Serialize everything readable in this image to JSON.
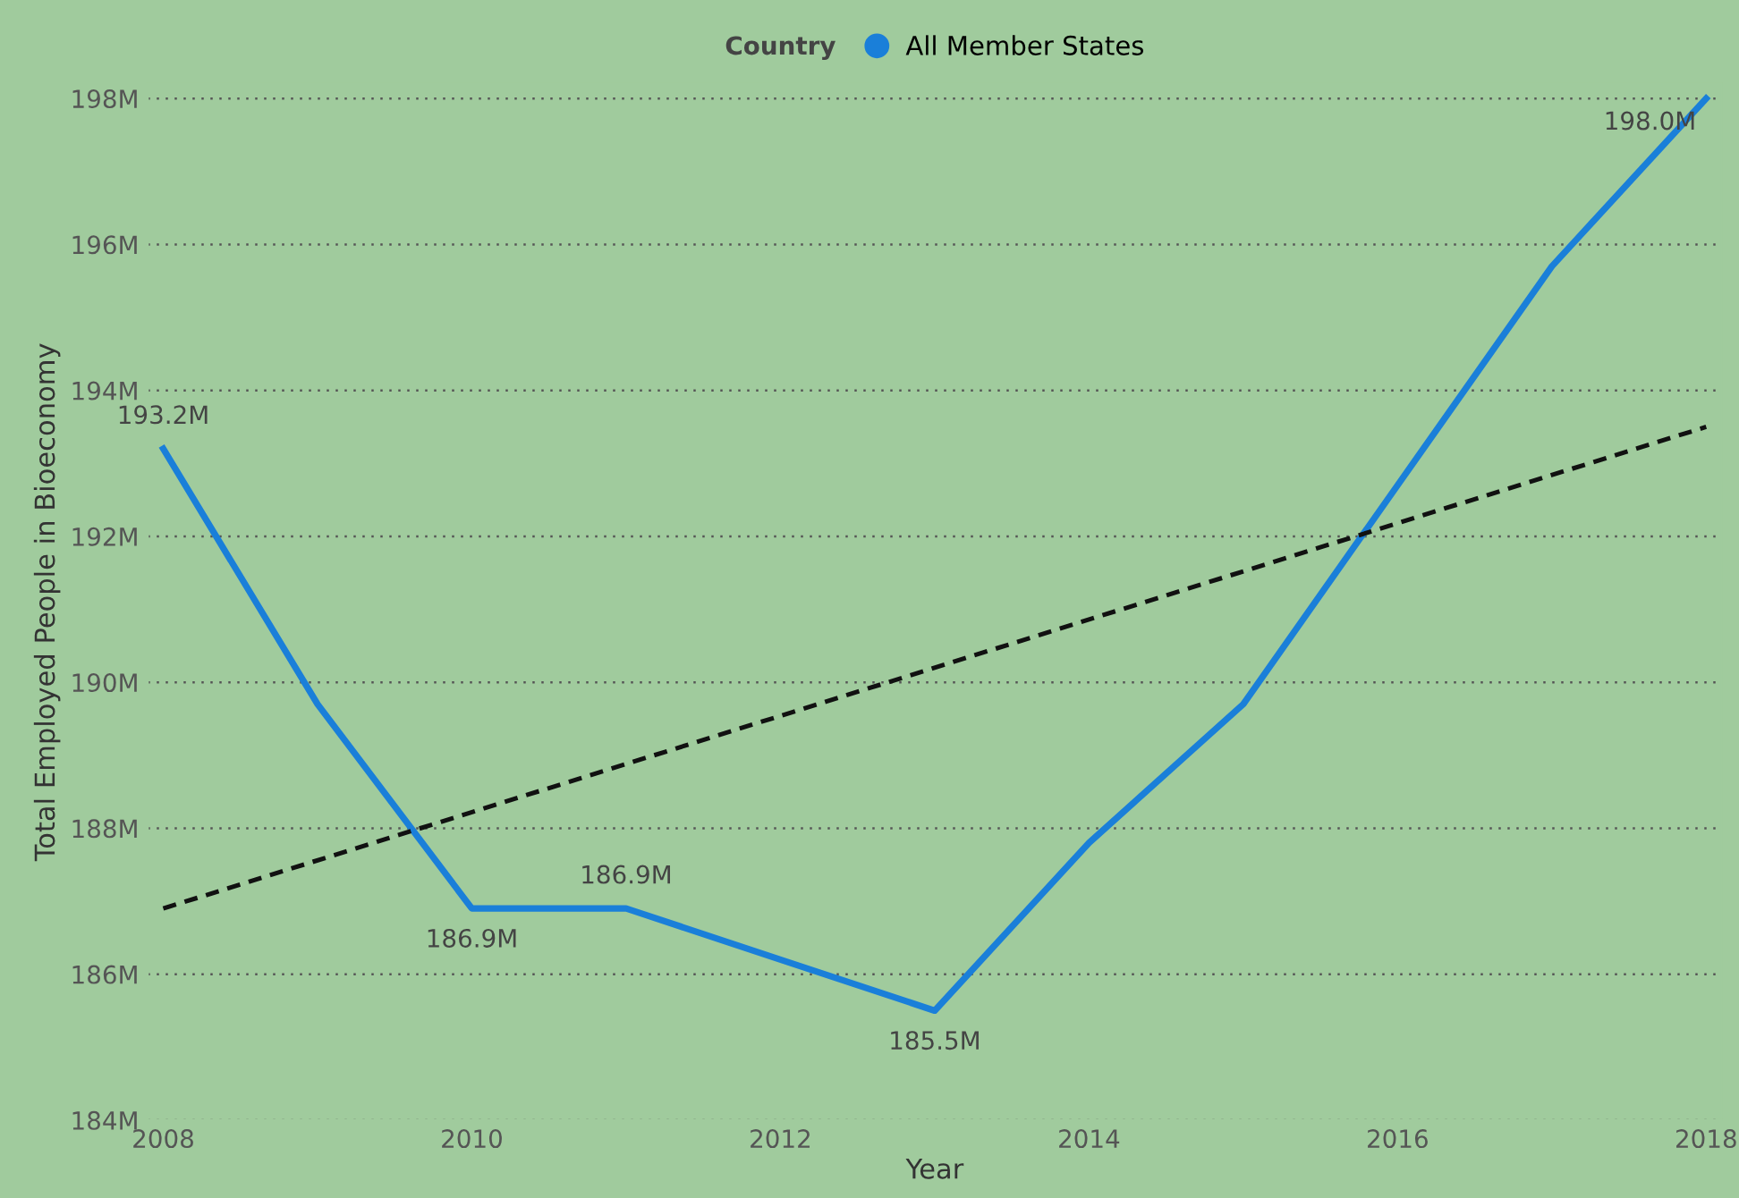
{
  "chart_data": {
    "type": "line",
    "xlabel": "Year",
    "ylabel": "Total Employed People in Bioeconomy",
    "legend_title": "Country",
    "legend": "top",
    "grid": "y",
    "line_style": "solid",
    "marker": "none",
    "x": [
      2008,
      2009,
      2010,
      2011,
      2012,
      2013,
      2014,
      2015,
      2016,
      2017,
      2018
    ],
    "series": [
      {
        "name": "All Member States",
        "color": "#1a7fd9",
        "values": [
          193.2,
          189.7,
          186.9,
          186.9,
          186.2,
          185.5,
          187.8,
          189.7,
          192.7,
          195.7,
          198.0
        ],
        "value_labels": [
          "193.2M",
          null,
          "186.9M",
          "186.9M",
          null,
          "185.5M",
          null,
          null,
          null,
          null,
          "198.0M"
        ]
      },
      {
        "type": "line",
        "color": "#111111",
        "line_style": "dashed",
        "x": [
          2008,
          2018
        ],
        "values": [
          186.9,
          193.5
        ]
      }
    ],
    "xlim": [
      2007.9,
      2018.1
    ],
    "xticks": [
      2008,
      2010,
      2012,
      2014,
      2016,
      2018
    ],
    "ylim": [
      184,
      198.2
    ],
    "yticks": [
      {
        "value": 184,
        "label": "184M"
      },
      {
        "value": 186,
        "label": "186M"
      },
      {
        "value": 188,
        "label": "188M"
      },
      {
        "value": 190,
        "label": "190M"
      },
      {
        "value": 192,
        "label": "192M"
      },
      {
        "value": 194,
        "label": "194M"
      },
      {
        "value": 196,
        "label": "196M"
      },
      {
        "value": 198,
        "label": "198M"
      }
    ]
  }
}
